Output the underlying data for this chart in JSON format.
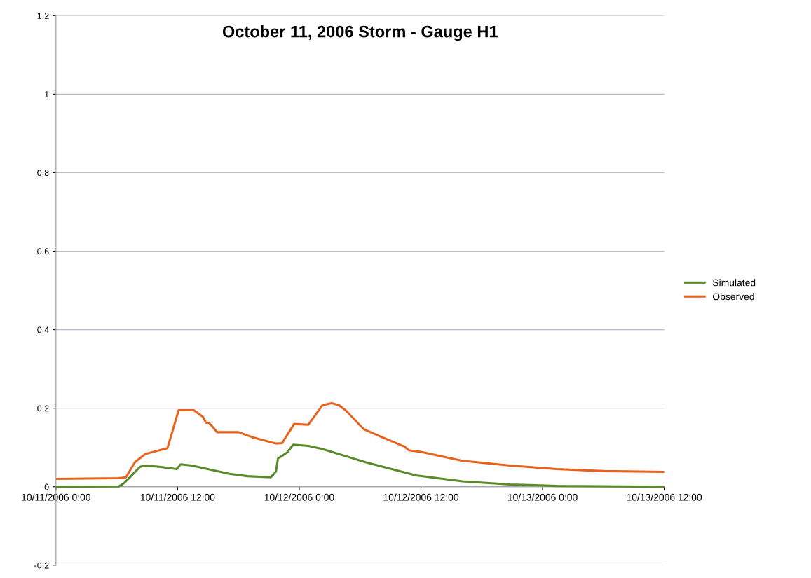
{
  "chart_data": {
    "type": "line",
    "title": "October 11, 2006 Storm - Gauge H1",
    "xlim": [
      "2006-10-11T00:00",
      "2006-10-13T12:00"
    ],
    "xticks": [
      {
        "value": "2006-10-11T00:00",
        "label": "10/11/2006 0:00"
      },
      {
        "value": "2006-10-11T12:00",
        "label": "10/11/2006 12:00"
      },
      {
        "value": "2006-10-12T00:00",
        "label": "10/12/2006 0:00"
      },
      {
        "value": "2006-10-12T12:00",
        "label": "10/12/2006 12:00"
      },
      {
        "value": "2006-10-13T00:00",
        "label": "10/13/2006 0:00"
      },
      {
        "value": "2006-10-13T12:00",
        "label": "10/13/2006 12:00"
      }
    ],
    "ylim": [
      -0.2,
      1.2
    ],
    "yticks": [
      -0.2,
      0,
      0.2,
      0.4,
      0.6,
      0.8,
      1,
      1.2
    ],
    "grid": "y",
    "legend": "right",
    "marker": "none",
    "line_style": "solid",
    "series": [
      {
        "name": "Simulated",
        "color": "#5a8a2a",
        "x": [
          "2006-10-11T00:00",
          "2006-10-11T06:12",
          "2006-10-11T06:42",
          "2006-10-11T07:24",
          "2006-10-11T08:18",
          "2006-10-11T08:48",
          "2006-10-11T10:12",
          "2006-10-11T11:54",
          "2006-10-11T12:18",
          "2006-10-11T13:24",
          "2006-10-11T17:06",
          "2006-10-11T18:54",
          "2006-10-11T21:12",
          "2006-10-11T21:42",
          "2006-10-11T21:54",
          "2006-10-11T22:48",
          "2006-10-11T23:24",
          "2006-10-12T00:54",
          "2006-10-12T02:18",
          "2006-10-12T06:36",
          "2006-10-12T11:30",
          "2006-10-12T16:06",
          "2006-10-12T20:48",
          "2006-10-13T01:24",
          "2006-10-13T12:00"
        ],
        "values": [
          0,
          0.001,
          0.009,
          0.027,
          0.051,
          0.054,
          0.051,
          0.045,
          0.057,
          0.054,
          0.033,
          0.027,
          0.024,
          0.039,
          0.072,
          0.087,
          0.107,
          0.104,
          0.096,
          0.062,
          0.029,
          0.014,
          0.006,
          0.002,
          0
        ]
      },
      {
        "name": "Observed",
        "color": "#e8621e",
        "x": [
          "2006-10-11T00:00",
          "2006-10-11T06:12",
          "2006-10-11T06:54",
          "2006-10-11T07:48",
          "2006-10-11T08:48",
          "2006-10-11T10:12",
          "2006-10-11T11:00",
          "2006-10-11T12:06",
          "2006-10-11T13:36",
          "2006-10-11T14:30",
          "2006-10-11T14:48",
          "2006-10-11T15:06",
          "2006-10-11T15:54",
          "2006-10-11T18:00",
          "2006-10-11T19:24",
          "2006-10-11T21:42",
          "2006-10-11T22:18",
          "2006-10-11T23:30",
          "2006-10-12T00:54",
          "2006-10-12T02:18",
          "2006-10-12T03:12",
          "2006-10-12T03:54",
          "2006-10-12T04:36",
          "2006-10-12T06:24",
          "2006-10-12T08:06",
          "2006-10-12T10:24",
          "2006-10-12T10:48",
          "2006-10-12T12:00",
          "2006-10-12T16:06",
          "2006-10-12T20:48",
          "2006-10-13T01:24",
          "2006-10-13T06:00",
          "2006-10-13T12:00"
        ],
        "values": [
          0.02,
          0.022,
          0.024,
          0.063,
          0.083,
          0.093,
          0.098,
          0.195,
          0.195,
          0.178,
          0.163,
          0.163,
          0.139,
          0.139,
          0.126,
          0.11,
          0.111,
          0.16,
          0.158,
          0.208,
          0.213,
          0.208,
          0.194,
          0.146,
          0.127,
          0.102,
          0.093,
          0.089,
          0.066,
          0.054,
          0.045,
          0.04,
          0.038
        ]
      }
    ]
  }
}
